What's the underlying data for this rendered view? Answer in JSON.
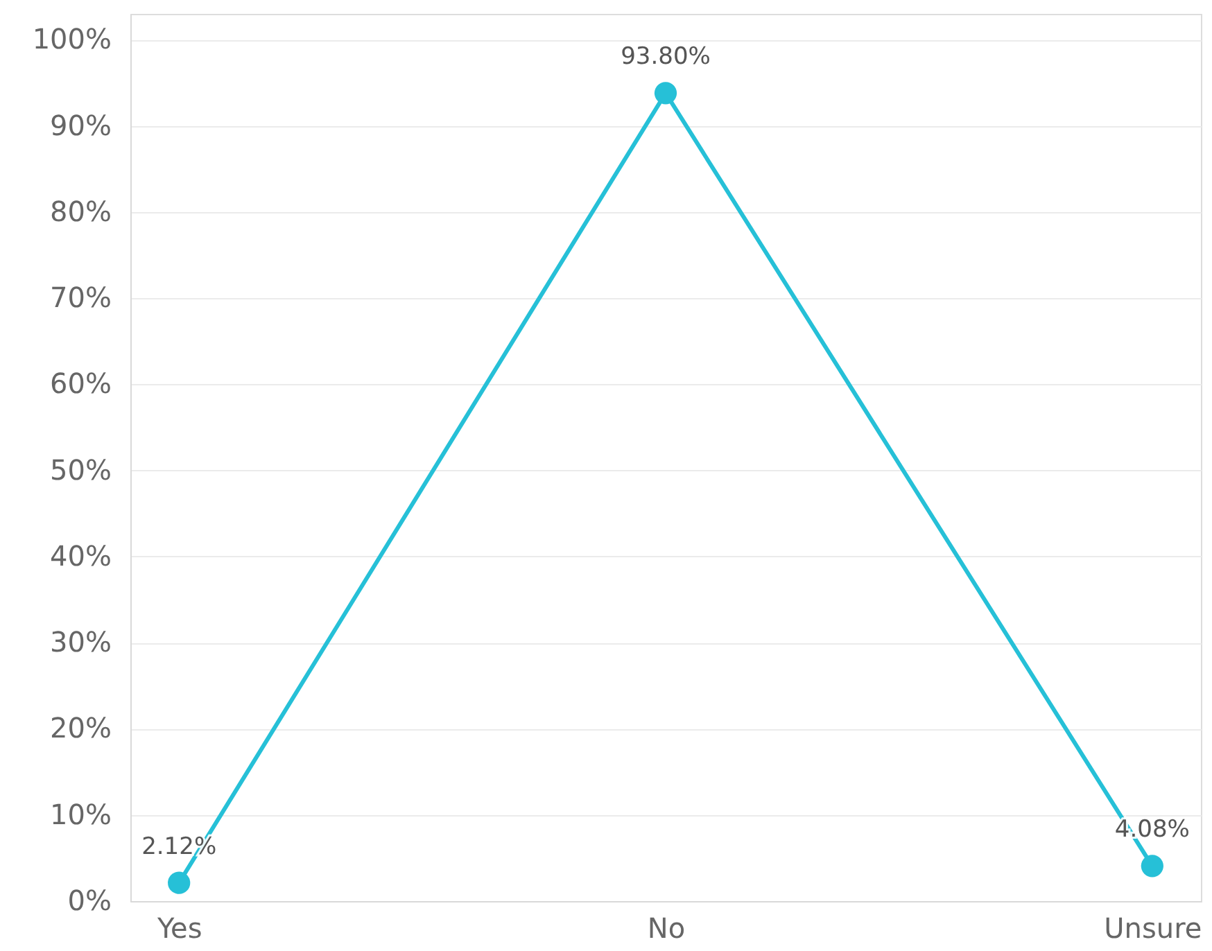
{
  "chart_data": {
    "type": "line",
    "categories": [
      "Yes",
      "No",
      "Unsure"
    ],
    "series": [
      {
        "color": "#26c0d7",
        "values": [
          2.12,
          93.8,
          4.08
        ],
        "value_labels": [
          "2.12%",
          "93.80%",
          "4.08%"
        ]
      }
    ],
    "ylim": [
      0,
      103
    ],
    "yticks": [
      {
        "value": 0,
        "label": "0%"
      },
      {
        "value": 10,
        "label": "10%"
      },
      {
        "value": 20,
        "label": "20%"
      },
      {
        "value": 30,
        "label": "30%"
      },
      {
        "value": 40,
        "label": "40%"
      },
      {
        "value": 50,
        "label": "50%"
      },
      {
        "value": 60,
        "label": "60%"
      },
      {
        "value": 70,
        "label": "70%"
      },
      {
        "value": 80,
        "label": "80%"
      },
      {
        "value": 90,
        "label": "90%"
      },
      {
        "value": 100,
        "label": "100%"
      }
    ],
    "grid": "y",
    "marker": "circle",
    "line_style": "solid"
  }
}
